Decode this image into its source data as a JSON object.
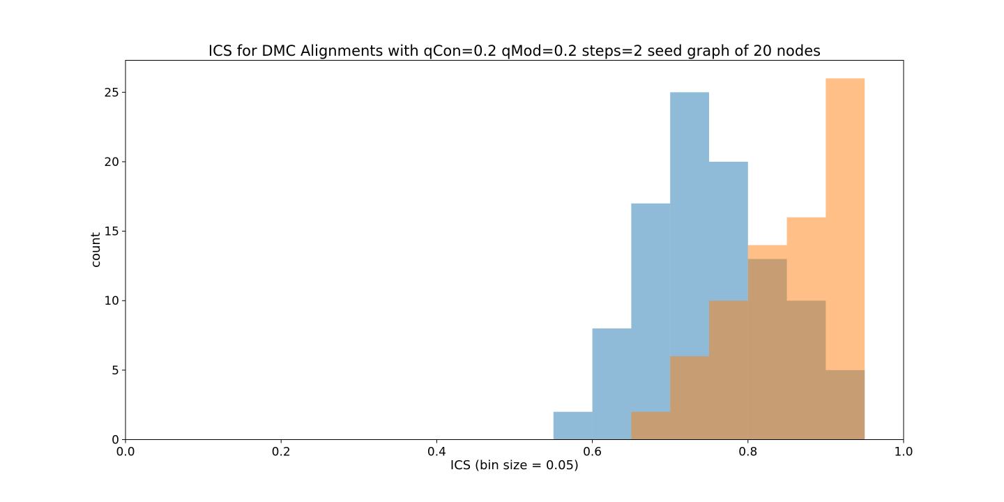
{
  "chart_data": {
    "type": "bar",
    "title": "ICS for DMC Alignments with qCon=0.2 qMod=0.2 steps=2 seed graph of 20 nodes",
    "xlabel": "ICS (bin size = 0.05)",
    "ylabel": "count",
    "xlim": [
      0.0,
      1.0
    ],
    "ylim": [
      0,
      27.3
    ],
    "bin_size": 0.05,
    "bin_edges": [
      0.55,
      0.6,
      0.65,
      0.7,
      0.75,
      0.8,
      0.85,
      0.9,
      0.95
    ],
    "x_ticks": [
      "0.0",
      "0.2",
      "0.4",
      "0.6",
      "0.8",
      "1.0"
    ],
    "x_tick_values": [
      0.0,
      0.2,
      0.4,
      0.6,
      0.8,
      1.0
    ],
    "y_ticks": [
      "0",
      "5",
      "10",
      "15",
      "20",
      "25"
    ],
    "y_tick_values": [
      0,
      5,
      10,
      15,
      20,
      25
    ],
    "grid": false,
    "series": [
      {
        "color": "#1f77b4",
        "opacity": 0.5,
        "values": [
          2,
          8,
          17,
          25,
          20,
          13,
          10,
          5
        ]
      },
      {
        "color": "#ff7f0e",
        "opacity": 0.5,
        "values": [
          0,
          0,
          2,
          6,
          10,
          14,
          16,
          26
        ]
      }
    ]
  }
}
